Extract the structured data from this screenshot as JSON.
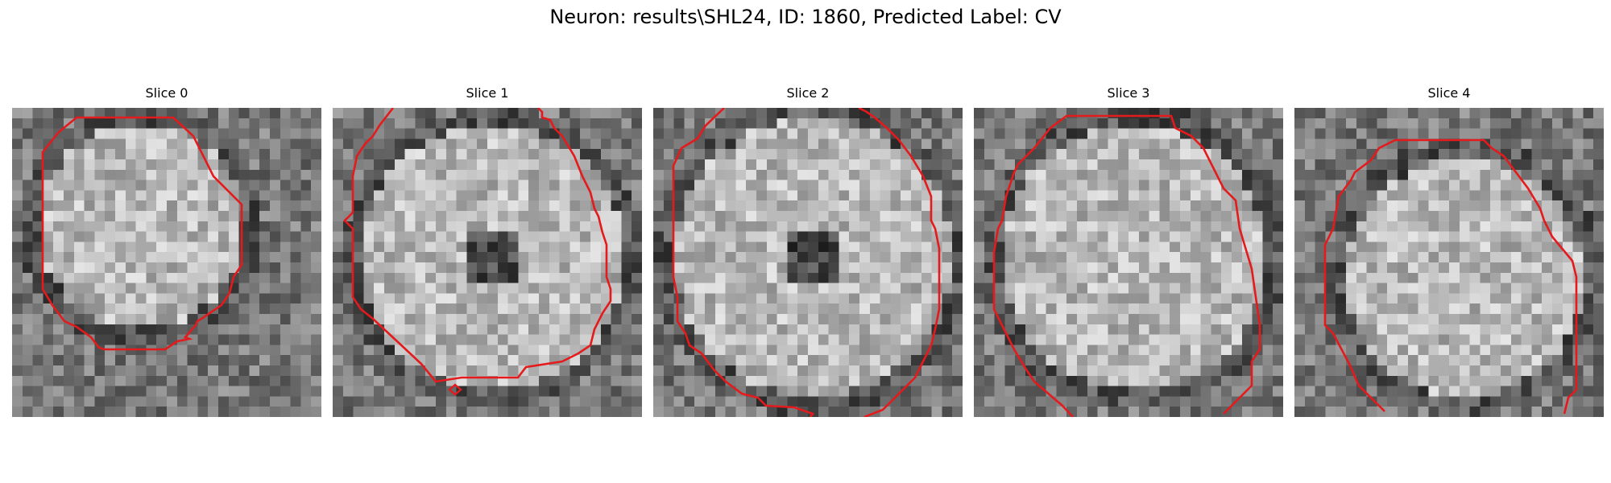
{
  "figure": {
    "title": "Neuron: results\\SHL24, ID: 1860, Predicted Label: CV"
  },
  "panels": [
    {
      "title": "Slice 0",
      "contour_color": "#e41a1c"
    },
    {
      "title": "Slice 1",
      "contour_color": "#e41a1c"
    },
    {
      "title": "Slice 2",
      "contour_color": "#e41a1c"
    },
    {
      "title": "Slice 3",
      "contour_color": "#e41a1c"
    },
    {
      "title": "Slice 4",
      "contour_color": "#e41a1c"
    }
  ]
}
